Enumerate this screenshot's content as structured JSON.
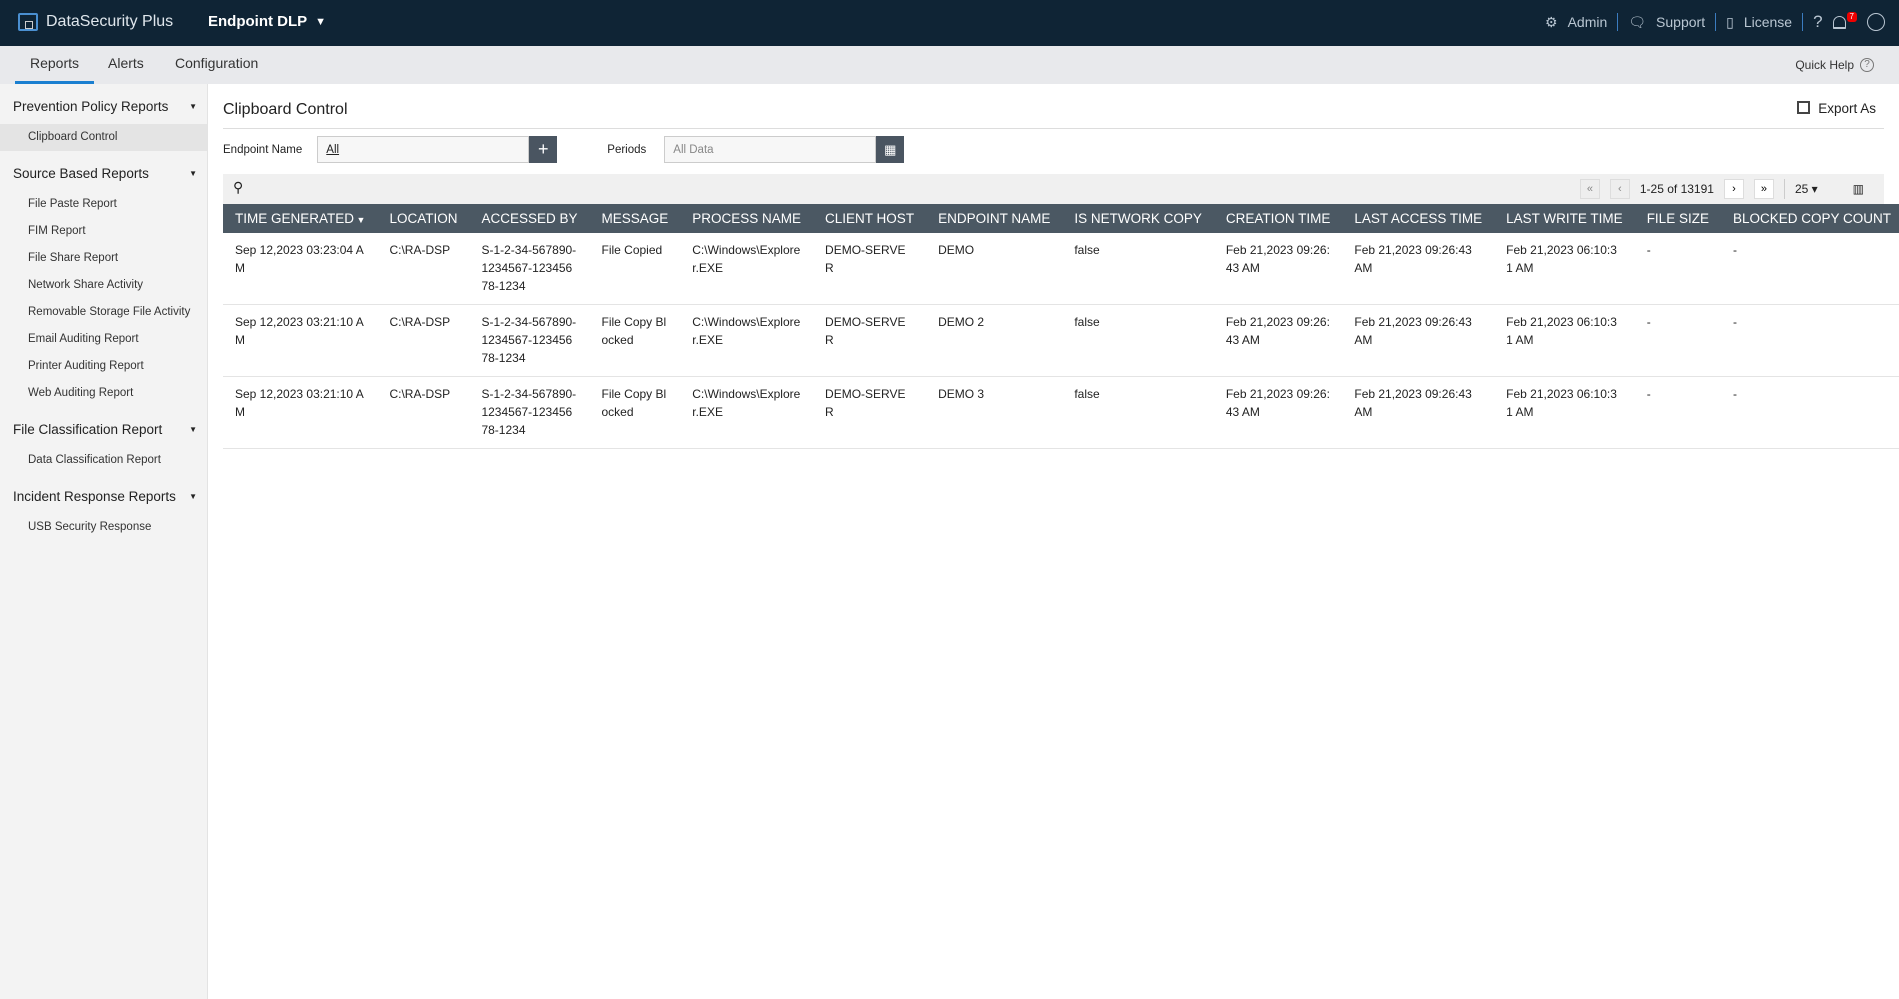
{
  "header": {
    "brand": "DataSecurity Plus",
    "product": "Endpoint DLP",
    "admin": "Admin",
    "support": "Support",
    "license": "License",
    "help": "?",
    "notif_count": "7"
  },
  "tabs": [
    {
      "label": "Reports"
    },
    {
      "label": "Alerts"
    },
    {
      "label": "Configuration"
    }
  ],
  "quick_help": "Quick Help",
  "sidebar": [
    {
      "title": "Prevention Policy Reports",
      "items": [
        "Clipboard Control"
      ]
    },
    {
      "title": "Source Based Reports",
      "items": [
        "File Paste Report",
        "FIM Report",
        "File Share Report",
        "Network Share Activity",
        "Removable Storage File Activity",
        "Email Auditing Report",
        "Printer Auditing Report",
        "Web Auditing Report"
      ]
    },
    {
      "title": "File Classification Report",
      "items": [
        "Data Classification Report"
      ]
    },
    {
      "title": "Incident Response Reports",
      "items": [
        "USB Security Response"
      ]
    }
  ],
  "page": {
    "title": "Clipboard Control",
    "export": "Export As",
    "endpoint_label": "Endpoint Name",
    "endpoint_value": "All",
    "periods_label": "Periods",
    "periods_value": "All Data"
  },
  "pagination": {
    "range": "1-25 of 13191",
    "per_page": "25"
  },
  "table": {
    "columns": [
      "TIME GENERATED",
      "LOCATION",
      "ACCESSED BY",
      "MESSAGE",
      "PROCESS NAME",
      "CLIENT HOST",
      "ENDPOINT NAME",
      "IS NETWORK COPY",
      "CREATION TIME",
      "LAST ACCESS TIME",
      "LAST WRITE TIME",
      "FILE SIZE",
      "BLOCKED COPY COUNT"
    ],
    "rows": [
      [
        "Sep 12,2023 03:23:04 AM",
        "C:\\RA-DSP",
        "S-1-2-34-567890-1234567-12345678-1234",
        "File Copied",
        "C:\\Windows\\Explorer.EXE",
        "DEMO-SERVER",
        "DEMO",
        "false",
        "Feb 21,2023 09:26:43 AM",
        "Feb 21,2023 09:26:43 AM",
        "Feb 21,2023 06:10:31 AM",
        "-",
        "-"
      ],
      [
        "Sep 12,2023 03:21:10 AM",
        "C:\\RA-DSP",
        "S-1-2-34-567890-1234567-12345678-1234",
        "File Copy Blocked",
        "C:\\Windows\\Explorer.EXE",
        "DEMO-SERVER",
        "DEMO 2",
        "false",
        "Feb 21,2023 09:26:43 AM",
        "Feb 21,2023 09:26:43 AM",
        "Feb 21,2023 06:10:31 AM",
        "-",
        "-"
      ],
      [
        "Sep 12,2023 03:21:10 AM",
        "C:\\RA-DSP",
        "S-1-2-34-567890-1234567-12345678-1234",
        "File Copy Blocked",
        "C:\\Windows\\Explorer.EXE",
        "DEMO-SERVER",
        "DEMO 3",
        "false",
        "Feb 21,2023 09:26:43 AM",
        "Feb 21,2023 09:26:43 AM",
        "Feb 21,2023 06:10:31 AM",
        "-",
        "-"
      ]
    ]
  }
}
